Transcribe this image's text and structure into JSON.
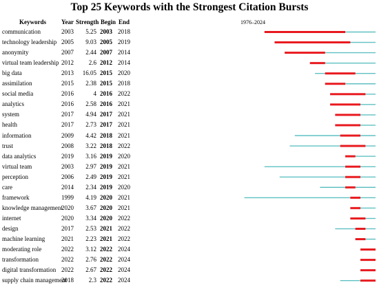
{
  "title": "Top 25 Keywords with the Strongest Citation Bursts",
  "headers": {
    "keywords": "Keywords",
    "year": "Year",
    "strength": "Strength",
    "begin": "Begin",
    "end": "End",
    "range_label": "1976–2024"
  },
  "colors": {
    "timeline": "#5fc0c2",
    "burst": "#e8191e"
  },
  "chart_data": {
    "type": "table",
    "title": "Top 25 Keywords with the Strongest Citation Bursts",
    "range": [
      1976,
      2024
    ],
    "rows": [
      {
        "keyword": "communication",
        "year": "2003",
        "strength": "5.25",
        "begin": "2003",
        "end": "2018"
      },
      {
        "keyword": "technology leadership",
        "year": "2005",
        "strength": "9.03",
        "begin": "2005",
        "end": "2019"
      },
      {
        "keyword": "anonymity",
        "year": "2007",
        "strength": "2.44",
        "begin": "2007",
        "end": "2014"
      },
      {
        "keyword": "virtual team leadership",
        "year": "2012",
        "strength": "2.6",
        "begin": "2012",
        "end": "2014"
      },
      {
        "keyword": "big data",
        "year": "2013",
        "strength": "16.05",
        "begin": "2015",
        "end": "2020"
      },
      {
        "keyword": "assimilation",
        "year": "2015",
        "strength": "2.38",
        "begin": "2015",
        "end": "2018"
      },
      {
        "keyword": "social media",
        "year": "2016",
        "strength": "4",
        "begin": "2016",
        "end": "2022"
      },
      {
        "keyword": "analytics",
        "year": "2016",
        "strength": "2.58",
        "begin": "2016",
        "end": "2021"
      },
      {
        "keyword": "system",
        "year": "2017",
        "strength": "4.94",
        "begin": "2017",
        "end": "2021"
      },
      {
        "keyword": "health",
        "year": "2017",
        "strength": "2.73",
        "begin": "2017",
        "end": "2021"
      },
      {
        "keyword": "information",
        "year": "2009",
        "strength": "4.42",
        "begin": "2018",
        "end": "2021"
      },
      {
        "keyword": "trust",
        "year": "2008",
        "strength": "3.22",
        "begin": "2018",
        "end": "2022"
      },
      {
        "keyword": "data analytics",
        "year": "2019",
        "strength": "3.16",
        "begin": "2019",
        "end": "2020"
      },
      {
        "keyword": "virtual team",
        "year": "2003",
        "strength": "2.97",
        "begin": "2019",
        "end": "2021"
      },
      {
        "keyword": "perception",
        "year": "2006",
        "strength": "2.49",
        "begin": "2019",
        "end": "2021"
      },
      {
        "keyword": "care",
        "year": "2014",
        "strength": "2.34",
        "begin": "2019",
        "end": "2020"
      },
      {
        "keyword": "framework",
        "year": "1999",
        "strength": "4.19",
        "begin": "2020",
        "end": "2021"
      },
      {
        "keyword": "knowledge management",
        "year": "2020",
        "strength": "3.67",
        "begin": "2020",
        "end": "2021"
      },
      {
        "keyword": "internet",
        "year": "2020",
        "strength": "3.34",
        "begin": "2020",
        "end": "2022"
      },
      {
        "keyword": "design",
        "year": "2017",
        "strength": "2.53",
        "begin": "2021",
        "end": "2022"
      },
      {
        "keyword": "machine learning",
        "year": "2021",
        "strength": "2.23",
        "begin": "2021",
        "end": "2022"
      },
      {
        "keyword": "moderating role",
        "year": "2022",
        "strength": "3.12",
        "begin": "2022",
        "end": "2024"
      },
      {
        "keyword": "transformation",
        "year": "2022",
        "strength": "2.76",
        "begin": "2022",
        "end": "2024"
      },
      {
        "keyword": "digital transformation",
        "year": "2022",
        "strength": "2.67",
        "begin": "2022",
        "end": "2024"
      },
      {
        "keyword": "supply chain management",
        "year": "2018",
        "strength": "2.3",
        "begin": "2022",
        "end": "2024"
      }
    ]
  }
}
